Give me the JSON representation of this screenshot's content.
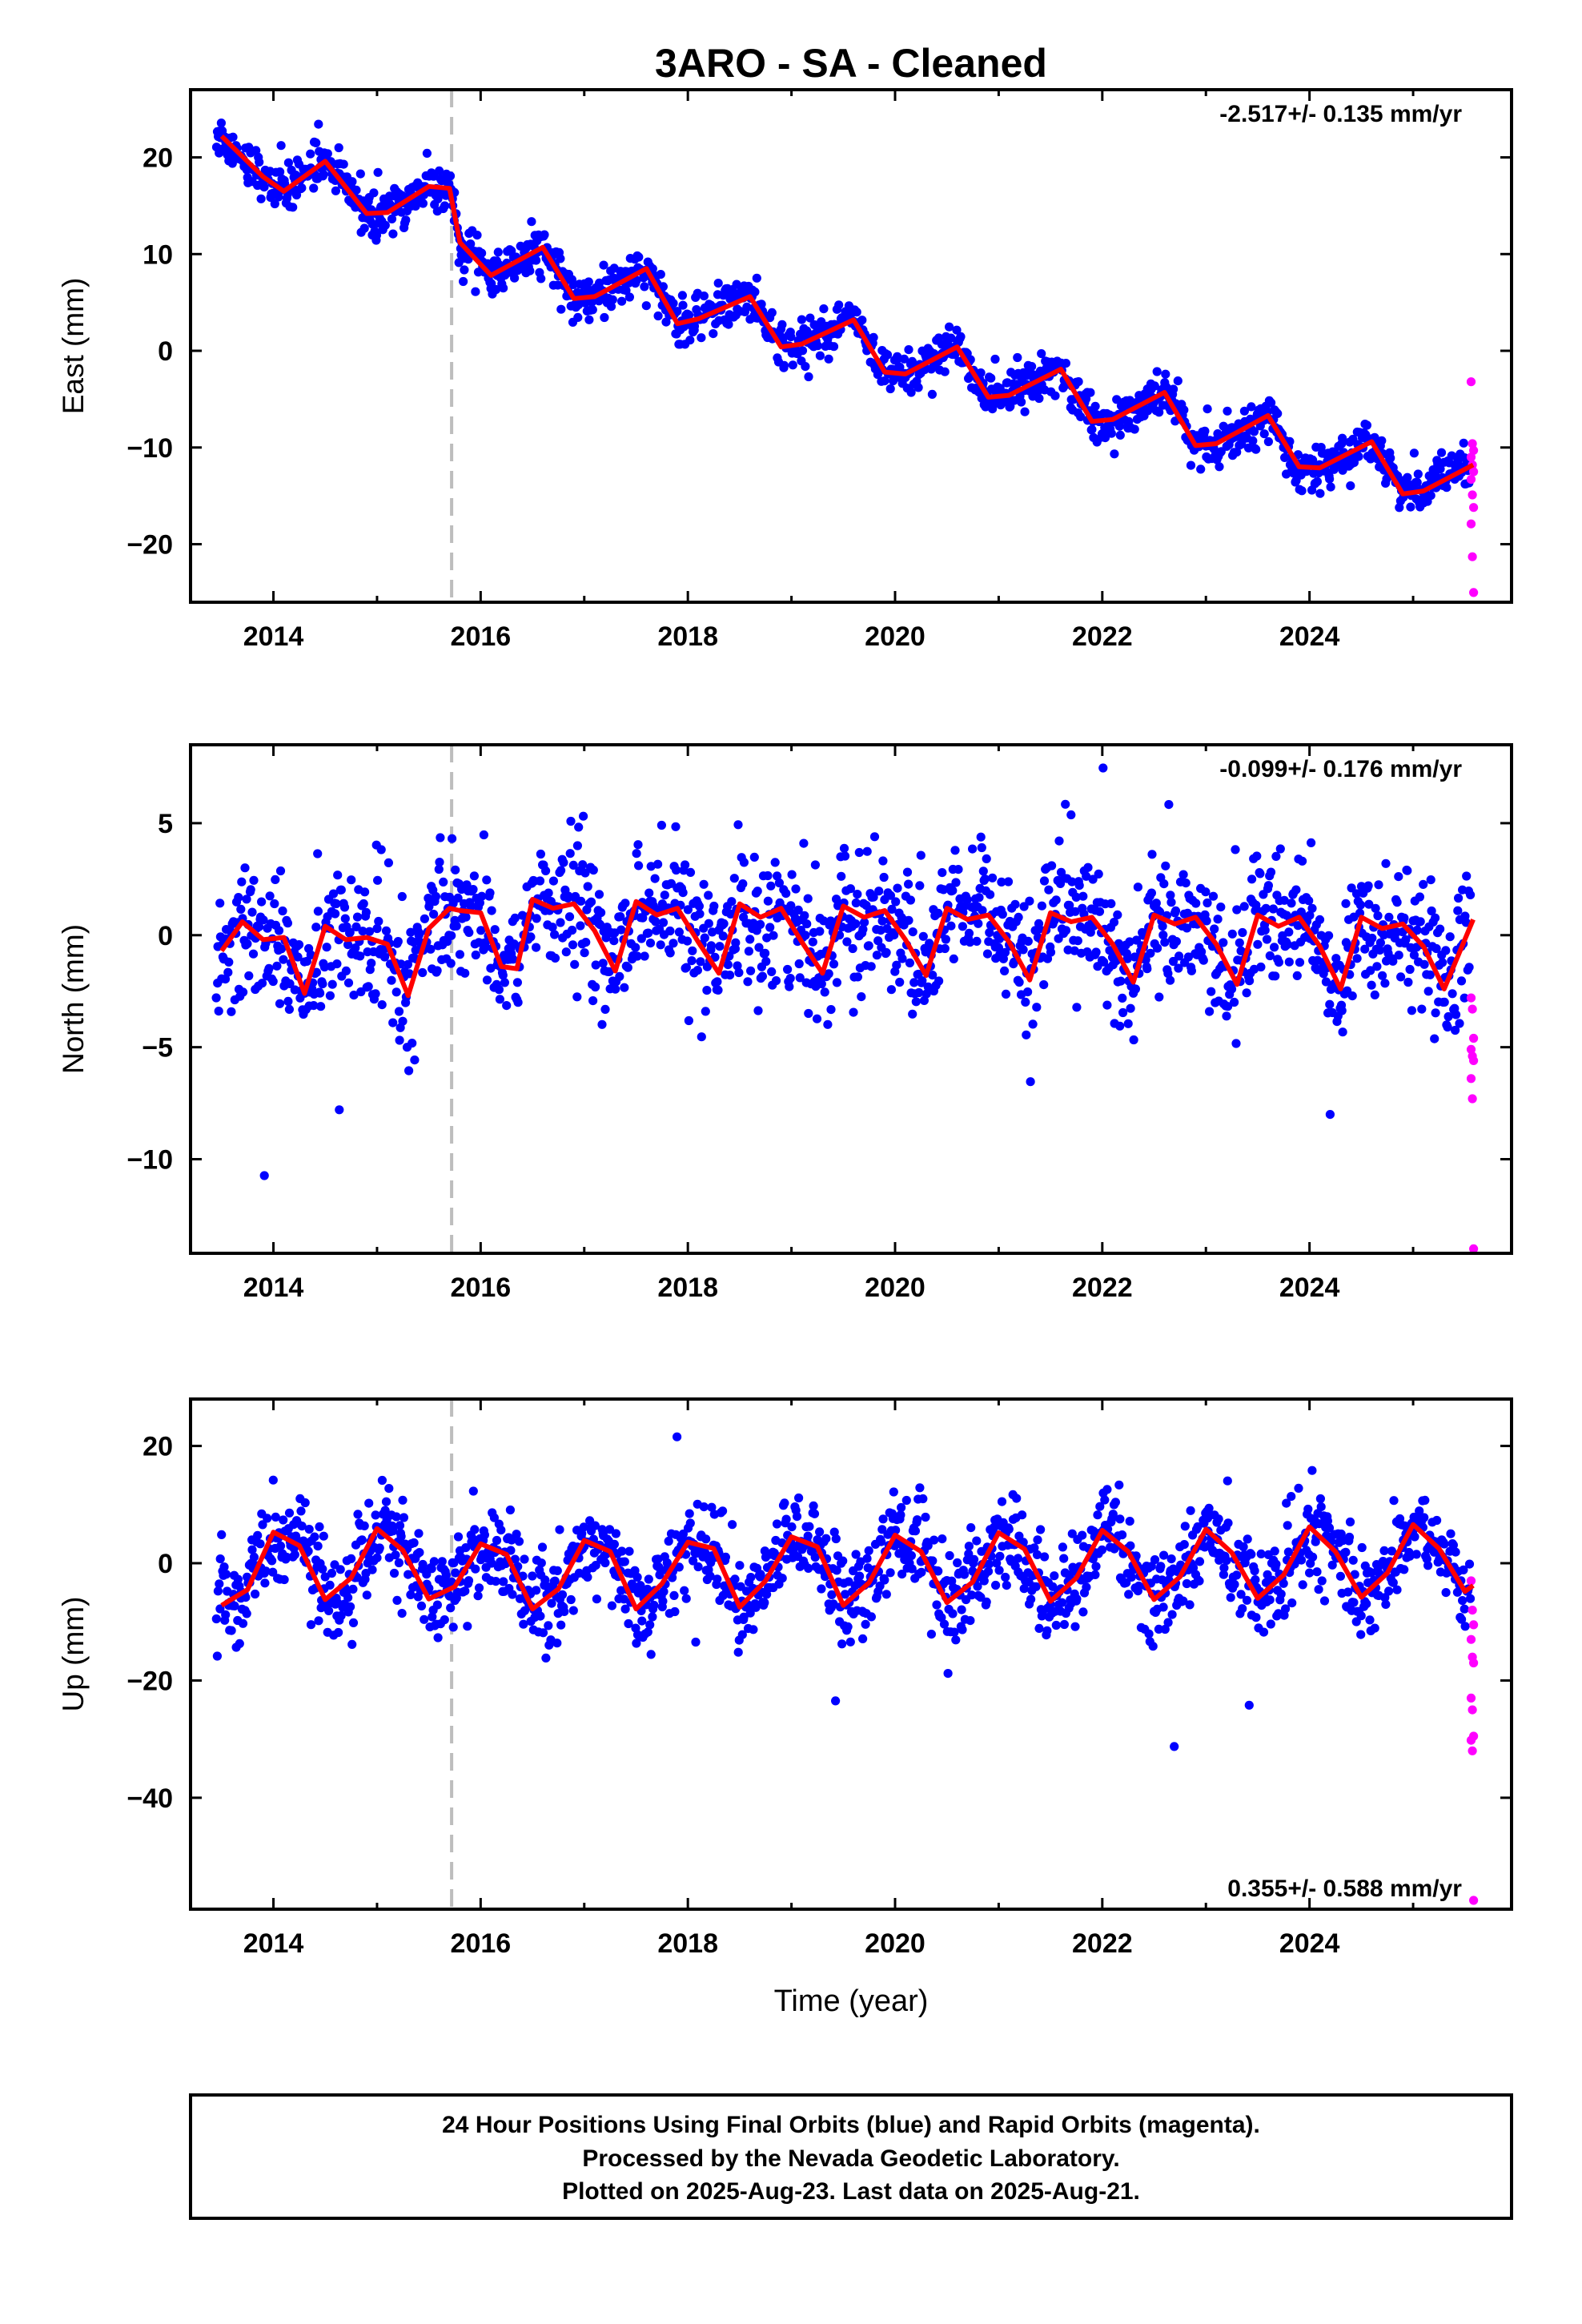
{
  "chart_data": {
    "type": "scatter",
    "title": "3ARO  - SA - Cleaned",
    "xlabel": "Time (year)",
    "xlim": [
      2013.2,
      2025.95
    ],
    "x_ticks": [
      "2014",
      "2016",
      "2018",
      "2020",
      "2022",
      "2024"
    ],
    "series_legend": [
      "Final Orbits (blue)",
      "Rapid Orbits (magenta)",
      "Model fit (red)"
    ],
    "colors": {
      "final": "#0000ff",
      "rapid": "#ff00ff",
      "model": "#ff0000",
      "offset": "#bdbdbd"
    },
    "equipment_change_year": 2015.72,
    "panels": [
      {
        "name": "east",
        "ylabel": "East (mm)",
        "ylim": [
          -26,
          27
        ],
        "y_ticks": [
          "20",
          "10",
          "0",
          "−10",
          "−20"
        ],
        "rate_text": "-2.517+/- 0.135 mm/yr",
        "rate_position": "top-right",
        "model_line": {
          "x": [
            2013.5,
            2013.9,
            2014.1,
            2014.5,
            2014.9,
            2015.1,
            2015.5,
            2015.7,
            2015.8,
            2016.1,
            2016.6,
            2016.9,
            2017.1,
            2017.6,
            2017.9,
            2018.1,
            2018.6,
            2018.9,
            2019.1,
            2019.6,
            2019.9,
            2020.1,
            2020.6,
            2020.9,
            2021.1,
            2021.6,
            2021.9,
            2022.1,
            2022.6,
            2022.9,
            2023.1,
            2023.6,
            2023.9,
            2024.1,
            2024.6,
            2024.9,
            2025.1,
            2025.58
          ],
          "y": [
            22.2,
            18.0,
            16.5,
            19.6,
            14.2,
            14.3,
            17.0,
            16.8,
            11.2,
            7.8,
            10.7,
            5.4,
            5.6,
            8.5,
            2.8,
            3.3,
            5.6,
            0.4,
            0.7,
            3.2,
            -2.2,
            -2.4,
            0.4,
            -4.8,
            -4.6,
            -1.9,
            -7.3,
            -7.1,
            -4.3,
            -9.8,
            -9.6,
            -6.7,
            -12.0,
            -12.1,
            -9.4,
            -14.8,
            -14.5,
            -11.8
          ]
        },
        "final_model": {
          "rate_mm_per_yr": -2.517,
          "annual_amp": 2.2,
          "scatter": 1.1
        },
        "rapid_points": [
          -3.2,
          -9.6,
          -10.3,
          -11.0,
          -11.8,
          -12.5,
          -13.3,
          -14.9,
          -16.2,
          -17.9,
          -21.3,
          -25.0
        ]
      },
      {
        "name": "north",
        "ylabel": "North (mm)",
        "ylim": [
          -14.2,
          8.5
        ],
        "y_ticks": [
          "5",
          "0",
          "−5",
          "−10"
        ],
        "rate_text": "-0.099+/- 0.176 mm/yr",
        "rate_position": "top-right",
        "model_line": {
          "x": [
            2013.5,
            2013.7,
            2013.9,
            2014.1,
            2014.3,
            2014.5,
            2014.7,
            2014.9,
            2015.1,
            2015.3,
            2015.5,
            2015.7,
            2015.8,
            2016.0,
            2016.2,
            2016.35,
            2016.5,
            2016.7,
            2016.9,
            2017.1,
            2017.3,
            2017.5,
            2017.7,
            2017.9,
            2018.1,
            2018.3,
            2018.5,
            2018.7,
            2018.9,
            2019.1,
            2019.3,
            2019.5,
            2019.7,
            2019.9,
            2020.1,
            2020.3,
            2020.5,
            2020.7,
            2020.9,
            2021.1,
            2021.3,
            2021.5,
            2021.7,
            2021.9,
            2022.1,
            2022.3,
            2022.5,
            2022.7,
            2022.9,
            2023.1,
            2023.3,
            2023.5,
            2023.7,
            2023.9,
            2024.1,
            2024.3,
            2024.5,
            2024.7,
            2024.9,
            2025.1,
            2025.3,
            2025.58
          ],
          "y": [
            -0.7,
            0.6,
            -0.2,
            -0.1,
            -2.6,
            0.4,
            -0.2,
            -0.1,
            -0.4,
            -2.7,
            0.3,
            1.2,
            1.1,
            1.0,
            -1.4,
            -1.5,
            1.6,
            1.2,
            1.4,
            0.2,
            -1.6,
            1.5,
            0.9,
            1.2,
            -0.3,
            -1.7,
            1.4,
            0.8,
            1.2,
            -0.3,
            -1.7,
            1.3,
            0.8,
            1.1,
            -0.2,
            -1.8,
            1.2,
            0.7,
            0.9,
            -0.3,
            -2.0,
            1.0,
            0.6,
            0.8,
            -0.4,
            -2.1,
            0.9,
            0.5,
            0.8,
            -0.4,
            -2.2,
            0.9,
            0.4,
            0.8,
            -0.5,
            -2.4,
            0.8,
            0.3,
            0.5,
            -0.5,
            -2.4,
            0.7
          ]
        },
        "final_model": {
          "rate_mm_per_yr": -0.099,
          "annual_amp": 1.3,
          "scatter": 1.5
        },
        "rapid_points": [
          -2.8,
          -3.3,
          -4.6,
          -5.1,
          -5.4,
          -5.6,
          -6.4,
          -7.3,
          -14.0
        ]
      },
      {
        "name": "up",
        "ylabel": "Up (mm)",
        "ylim": [
          -59,
          28
        ],
        "y_ticks": [
          "20",
          "0",
          "−20",
          "−40"
        ],
        "rate_text": "0.355+/- 0.588 mm/yr",
        "rate_position": "bottom-right",
        "model_line": {
          "x": [
            2013.5,
            2013.75,
            2014.0,
            2014.25,
            2014.5,
            2014.75,
            2015.0,
            2015.25,
            2015.5,
            2015.75,
            2016.0,
            2016.25,
            2016.5,
            2016.75,
            2017.0,
            2017.25,
            2017.5,
            2017.75,
            2018.0,
            2018.25,
            2018.5,
            2018.75,
            2019.0,
            2019.25,
            2019.5,
            2019.75,
            2020.0,
            2020.25,
            2020.5,
            2020.75,
            2021.0,
            2021.25,
            2021.5,
            2021.75,
            2022.0,
            2022.25,
            2022.5,
            2022.75,
            2023.0,
            2023.25,
            2023.5,
            2023.75,
            2024.0,
            2024.25,
            2024.5,
            2024.75,
            2025.0,
            2025.25,
            2025.5,
            2025.58
          ],
          "y": [
            -7.2,
            -4.5,
            5.3,
            3.0,
            -6.2,
            -2.5,
            5.9,
            2.2,
            -6.1,
            -4.0,
            3.3,
            1.5,
            -7.8,
            -4.4,
            3.9,
            2.0,
            -7.8,
            -3.5,
            3.6,
            2.5,
            -7.5,
            -3.0,
            4.5,
            2.8,
            -7.2,
            -3.3,
            4.8,
            2.0,
            -6.7,
            -3.2,
            5.2,
            2.4,
            -6.5,
            -2.5,
            5.6,
            2.0,
            -6.2,
            -2.3,
            5.8,
            1.8,
            -6.0,
            -2.0,
            6.2,
            2.0,
            -5.8,
            -1.7,
            6.6,
            2.5,
            -4.8,
            -3.8
          ]
        },
        "final_model": {
          "rate_mm_per_yr": 0.355,
          "annual_amp": 6.0,
          "scatter": 4.0
        },
        "rapid_points": [
          -3.0,
          -8.0,
          -10.5,
          -13.0,
          -16.0,
          -17.0,
          -23.0,
          -25.0,
          -29.5,
          -30.2,
          -32.0,
          -57.5
        ]
      }
    ]
  },
  "footer": {
    "line1": "24 Hour Positions Using Final Orbits (blue) and Rapid Orbits (magenta).",
    "line2": "Processed by the Nevada Geodetic Laboratory.",
    "line3": "Plotted on 2025-Aug-23. Last data on 2025-Aug-21."
  }
}
